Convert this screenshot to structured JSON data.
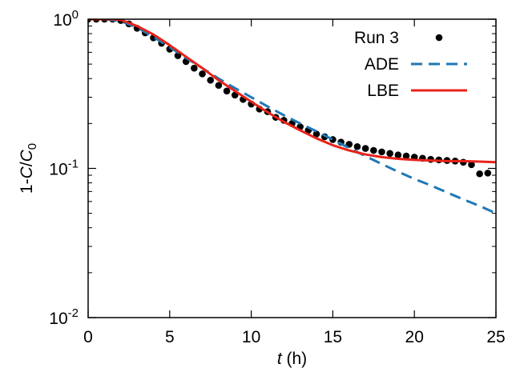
{
  "chart_data": {
    "type": "scatter",
    "xlabel": {
      "var": "t",
      "unit": " (h)"
    },
    "ylabel": {
      "prefix": "1-",
      "num": "C",
      "den": "C",
      "den_sub": "0"
    },
    "xlim": [
      0,
      25
    ],
    "ylim": [
      0.01,
      1
    ],
    "yscale": "log",
    "grid": false,
    "legend_position": "top-right",
    "x_ticks": [
      {
        "value": 0,
        "label": "0"
      },
      {
        "value": 5,
        "label": "5"
      },
      {
        "value": 10,
        "label": "10"
      },
      {
        "value": 15,
        "label": "15"
      },
      {
        "value": 20,
        "label": "20"
      },
      {
        "value": 25,
        "label": "25"
      }
    ],
    "y_ticks": [
      {
        "value": 1,
        "base": "10",
        "exp": "0"
      },
      {
        "value": 0.1,
        "base": "10",
        "exp": "-1"
      },
      {
        "value": 0.01,
        "base": "10",
        "exp": "-2"
      }
    ],
    "series": [
      {
        "name": "Run 3",
        "kind": "points",
        "color": "#000000",
        "x": [
          0,
          0.5,
          1,
          1.5,
          2,
          2.5,
          3,
          3.5,
          4,
          4.5,
          5,
          5.5,
          6,
          6.5,
          7,
          7.5,
          8,
          8.5,
          9,
          9.5,
          10,
          10.5,
          11,
          11.5,
          12,
          12.5,
          13,
          13.5,
          14,
          14.5,
          15,
          15.5,
          16,
          16.5,
          17,
          17.5,
          18,
          18.5,
          19,
          19.5,
          20,
          20.5,
          21,
          21.5,
          22,
          22.5,
          23,
          23.5,
          24,
          24.5
        ],
        "y": [
          1.0,
          1.0,
          1.0,
          1.0,
          0.98,
          0.93,
          0.87,
          0.81,
          0.75,
          0.69,
          0.63,
          0.57,
          0.52,
          0.47,
          0.43,
          0.39,
          0.36,
          0.33,
          0.31,
          0.29,
          0.27,
          0.25,
          0.24,
          0.22,
          0.21,
          0.2,
          0.19,
          0.18,
          0.17,
          0.163,
          0.156,
          0.15,
          0.145,
          0.14,
          0.136,
          0.132,
          0.129,
          0.126,
          0.123,
          0.121,
          0.119,
          0.117,
          0.115,
          0.114,
          0.113,
          0.112,
          0.11,
          0.106,
          0.092,
          0.093
        ]
      },
      {
        "name": "ADE",
        "kind": "line",
        "dash": "dashed",
        "color": "#1f78b4",
        "x": [
          0,
          1,
          2,
          3,
          4,
          5,
          6,
          7,
          8,
          9,
          10,
          11,
          12,
          13,
          14,
          15,
          16,
          17,
          18,
          19,
          20,
          21,
          22,
          23,
          24,
          25
        ],
        "y": [
          1.0,
          1.0,
          0.97,
          0.88,
          0.76,
          0.65,
          0.55,
          0.47,
          0.4,
          0.345,
          0.3,
          0.26,
          0.227,
          0.2,
          0.177,
          0.156,
          0.137,
          0.121,
          0.107,
          0.095,
          0.085,
          0.077,
          0.069,
          0.062,
          0.056,
          0.05
        ]
      },
      {
        "name": "LBE",
        "kind": "line",
        "dash": "solid",
        "color": "#e8231a",
        "x": [
          0,
          1,
          1.5,
          2,
          3,
          4,
          5,
          6,
          7,
          8,
          9,
          10,
          11,
          12,
          13,
          14,
          15,
          16,
          17,
          18,
          19,
          20,
          21,
          22,
          23,
          24,
          25
        ],
        "y": [
          1.0,
          1.0,
          1.0,
          0.99,
          0.9,
          0.79,
          0.67,
          0.56,
          0.47,
          0.39,
          0.33,
          0.28,
          0.238,
          0.205,
          0.18,
          0.159,
          0.143,
          0.132,
          0.124,
          0.119,
          0.116,
          0.114,
          0.113,
          0.112,
          0.112,
          0.111,
          0.11
        ]
      }
    ]
  }
}
